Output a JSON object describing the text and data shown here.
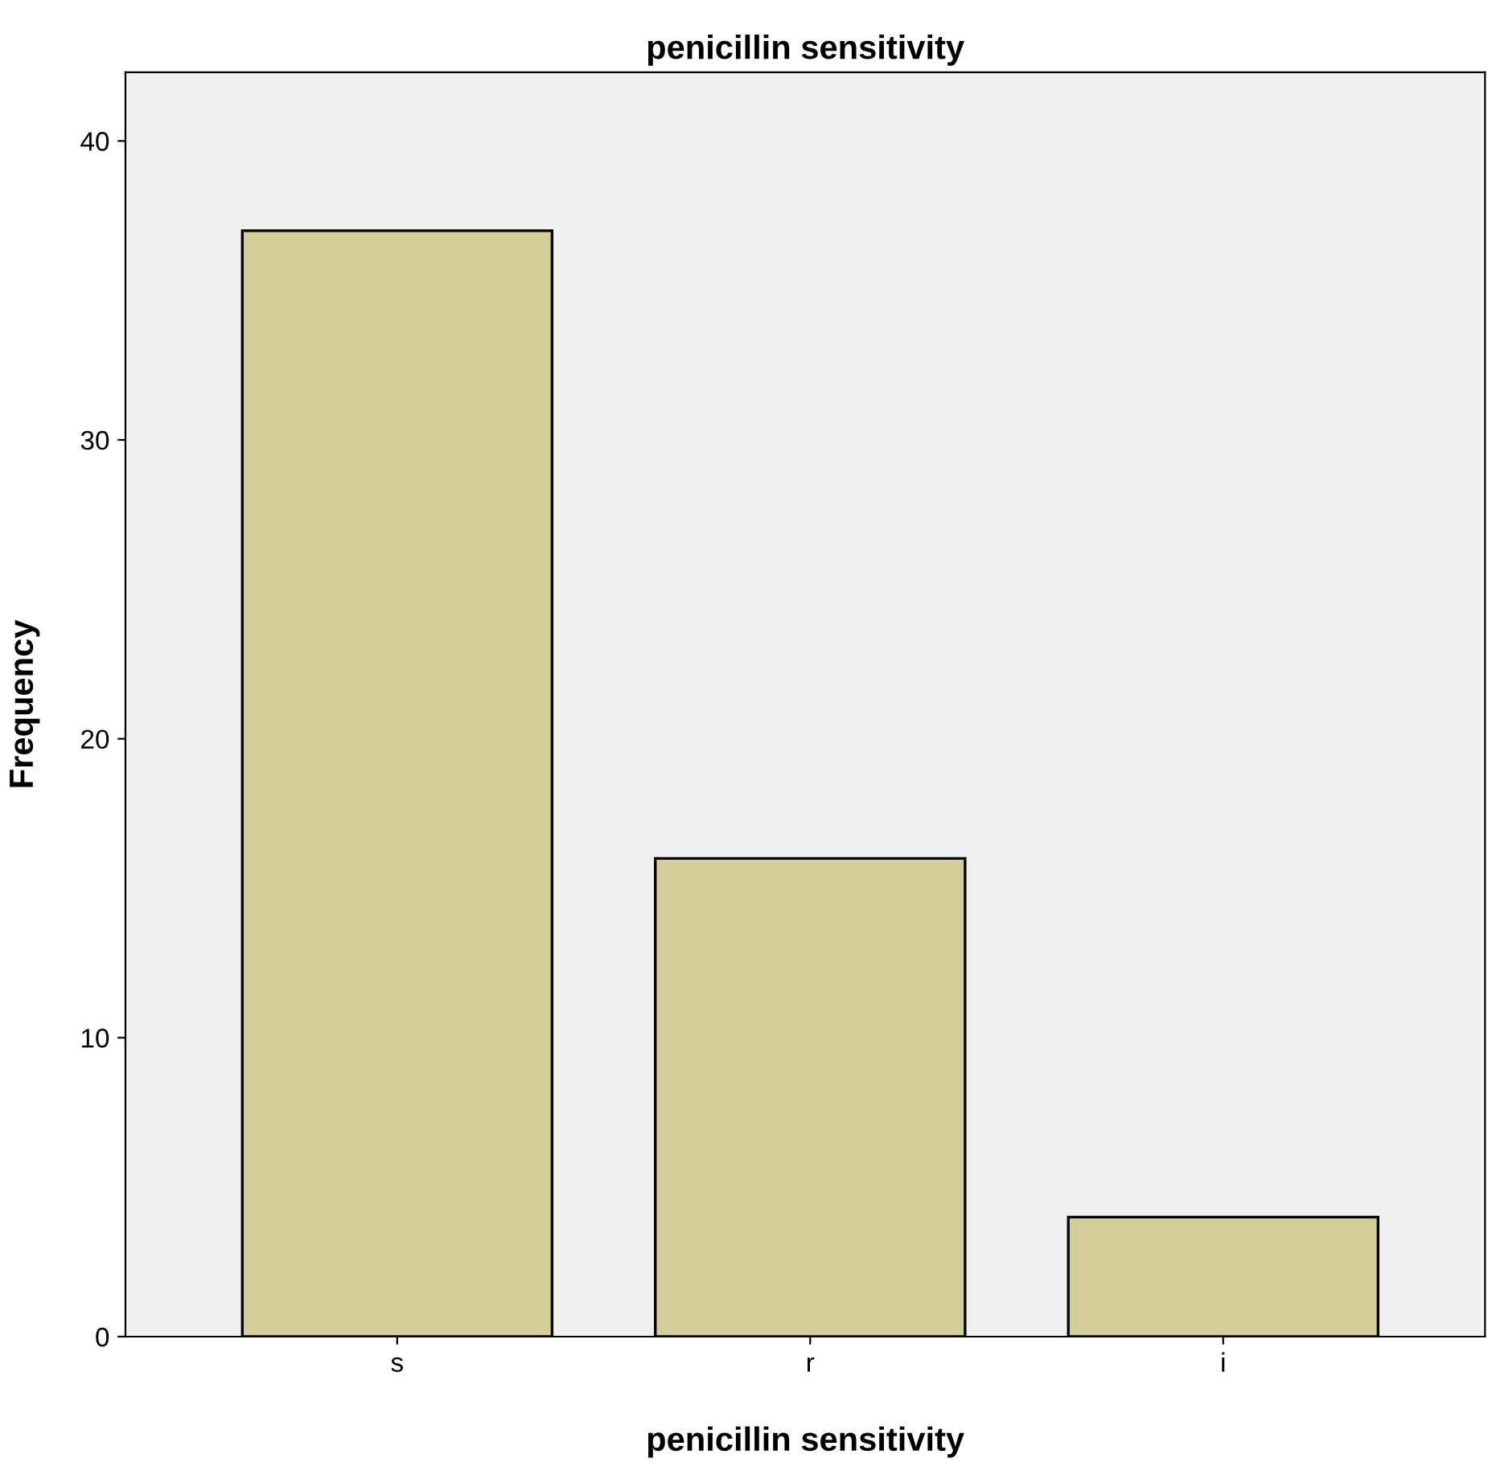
{
  "chart_data": {
    "type": "bar",
    "title": "penicillin sensitivity",
    "xlabel": "penicillin sensitivity",
    "ylabel": "Frequency",
    "categories": [
      "s",
      "r",
      "i"
    ],
    "values": [
      37,
      16,
      4
    ],
    "color": "#d3ce97",
    "ylim": [
      0,
      42.3
    ],
    "yticks": [
      0,
      10,
      20,
      30,
      40
    ],
    "grid": false
  }
}
